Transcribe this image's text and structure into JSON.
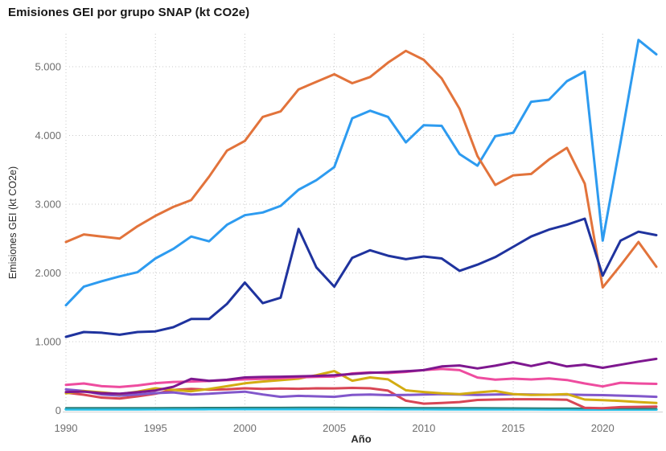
{
  "header": {
    "title": "Emisiones GEI por grupo SNAP (kt CO2e)"
  },
  "chart_data": {
    "type": "line",
    "title": "Emisiones GEI por grupo SNAP (kt CO2e)",
    "xlabel": "Año",
    "ylabel": "Emisiones GEI (kt CO2e)",
    "legend": "none",
    "grid": "dotted",
    "ylim": [
      0,
      5500
    ],
    "x": [
      1990,
      1991,
      1992,
      1993,
      1994,
      1995,
      1996,
      1997,
      1998,
      1999,
      2000,
      2001,
      2002,
      2003,
      2004,
      2005,
      2006,
      2007,
      2008,
      2009,
      2010,
      2011,
      2012,
      2013,
      2014,
      2015,
      2016,
      2017,
      2018,
      2019,
      2020,
      2021,
      2022,
      2023
    ],
    "x_ticks": [
      1990,
      1995,
      2000,
      2005,
      2010,
      2015,
      2020
    ],
    "y_ticks": [
      0,
      1000,
      2000,
      3000,
      4000,
      5000
    ],
    "y_tick_labels": [
      "0",
      "1.000",
      "2.000",
      "3.000",
      "4.000",
      "5.000"
    ],
    "style": {
      "grid_color": "#c9c9c9",
      "axis_line_color": "#d8d8d8",
      "tick_label_color": "#6e6e6e",
      "background": "#ffffff"
    },
    "series": [
      {
        "name": "serie-cian",
        "color": "#27C0E8",
        "width": 3.5,
        "values": [
          18,
          18,
          18,
          18,
          18,
          19,
          19,
          19,
          20,
          20,
          20,
          20,
          20,
          20,
          20,
          20,
          20,
          20,
          19,
          19,
          19,
          18,
          18,
          18,
          18,
          17,
          17,
          16,
          16,
          15,
          14,
          15,
          15,
          15
        ]
      },
      {
        "name": "serie-verde-azulado",
        "color": "#2E7F78",
        "width": 2,
        "values": [
          38,
          38,
          37,
          37,
          38,
          39,
          40,
          40,
          41,
          41,
          42,
          42,
          42,
          43,
          43,
          43,
          42,
          42,
          41,
          40,
          39,
          38,
          38,
          37,
          36,
          35,
          34,
          33,
          32,
          30,
          28,
          28,
          27,
          26
        ]
      },
      {
        "name": "serie-rojo",
        "color": "#D84655",
        "width": 3,
        "values": [
          258,
          228,
          186,
          172,
          205,
          242,
          298,
          312,
          302,
          308,
          322,
          312,
          318,
          315,
          322,
          320,
          328,
          322,
          288,
          142,
          98,
          108,
          122,
          152,
          158,
          162,
          162,
          160,
          155,
          38,
          32,
          48,
          52,
          55
        ]
      },
      {
        "name": "serie-violeta",
        "color": "#8157CB",
        "width": 3,
        "values": [
          305,
          282,
          232,
          215,
          232,
          252,
          262,
          232,
          242,
          258,
          272,
          232,
          198,
          212,
          205,
          198,
          225,
          232,
          222,
          225,
          232,
          238,
          230,
          225,
          230,
          235,
          230,
          228,
          230,
          225,
          222,
          215,
          208,
          198
        ]
      },
      {
        "name": "serie-amarillo",
        "color": "#D3AC12",
        "width": 3,
        "values": [
          248,
          282,
          262,
          238,
          272,
          322,
          298,
          278,
          312,
          352,
          394,
          420,
          440,
          462,
          512,
          572,
          432,
          480,
          452,
          292,
          268,
          248,
          236,
          262,
          282,
          238,
          226,
          228,
          238,
          158,
          150,
          138,
          122,
          108
        ]
      },
      {
        "name": "serie-rosa",
        "color": "#EE4C9F",
        "width": 3,
        "values": [
          372,
          392,
          352,
          340,
          362,
          396,
          414,
          420,
          428,
          440,
          452,
          458,
          468,
          482,
          488,
          492,
          538,
          552,
          544,
          560,
          586,
          604,
          586,
          478,
          448,
          462,
          450,
          464,
          442,
          392,
          348,
          402,
          392,
          386
        ]
      },
      {
        "name": "serie-morado",
        "color": "#7E178F",
        "width": 3,
        "values": [
          268,
          274,
          250,
          242,
          264,
          290,
          344,
          460,
          430,
          446,
          480,
          486,
          490,
          496,
          502,
          512,
          530,
          546,
          556,
          570,
          586,
          640,
          654,
          610,
          650,
          700,
          646,
          700,
          640,
          666,
          620,
          664,
          710,
          750
        ]
      },
      {
        "name": "serie-azul-claro",
        "color": "#2D9BF0",
        "width": 3,
        "values": [
          1530,
          1800,
          1880,
          1950,
          2010,
          2210,
          2350,
          2530,
          2460,
          2700,
          2840,
          2880,
          2975,
          3210,
          3350,
          3540,
          4250,
          4360,
          4270,
          3900,
          4150,
          4140,
          3730,
          3560,
          3990,
          4040,
          4490,
          4520,
          4790,
          4930,
          2470,
          3900,
          5390,
          5180
        ]
      },
      {
        "name": "serie-naranja",
        "color": "#E2733B",
        "width": 3,
        "values": [
          2450,
          2560,
          2530,
          2500,
          2680,
          2830,
          2960,
          3060,
          3400,
          3780,
          3920,
          4270,
          4350,
          4670,
          4780,
          4890,
          4760,
          4850,
          5060,
          5230,
          5100,
          4830,
          4390,
          3700,
          3280,
          3420,
          3440,
          3650,
          3820,
          3300,
          1790,
          2110,
          2450,
          2090
        ]
      },
      {
        "name": "serie-azul-marino",
        "color": "#1F339E",
        "width": 3,
        "values": [
          1070,
          1140,
          1130,
          1100,
          1140,
          1150,
          1210,
          1330,
          1330,
          1550,
          1860,
          1560,
          1640,
          2640,
          2080,
          1800,
          2220,
          2330,
          2250,
          2200,
          2240,
          2210,
          2030,
          2120,
          2230,
          2380,
          2530,
          2630,
          2700,
          2790,
          1960,
          2470,
          2600,
          2550
        ]
      }
    ]
  }
}
